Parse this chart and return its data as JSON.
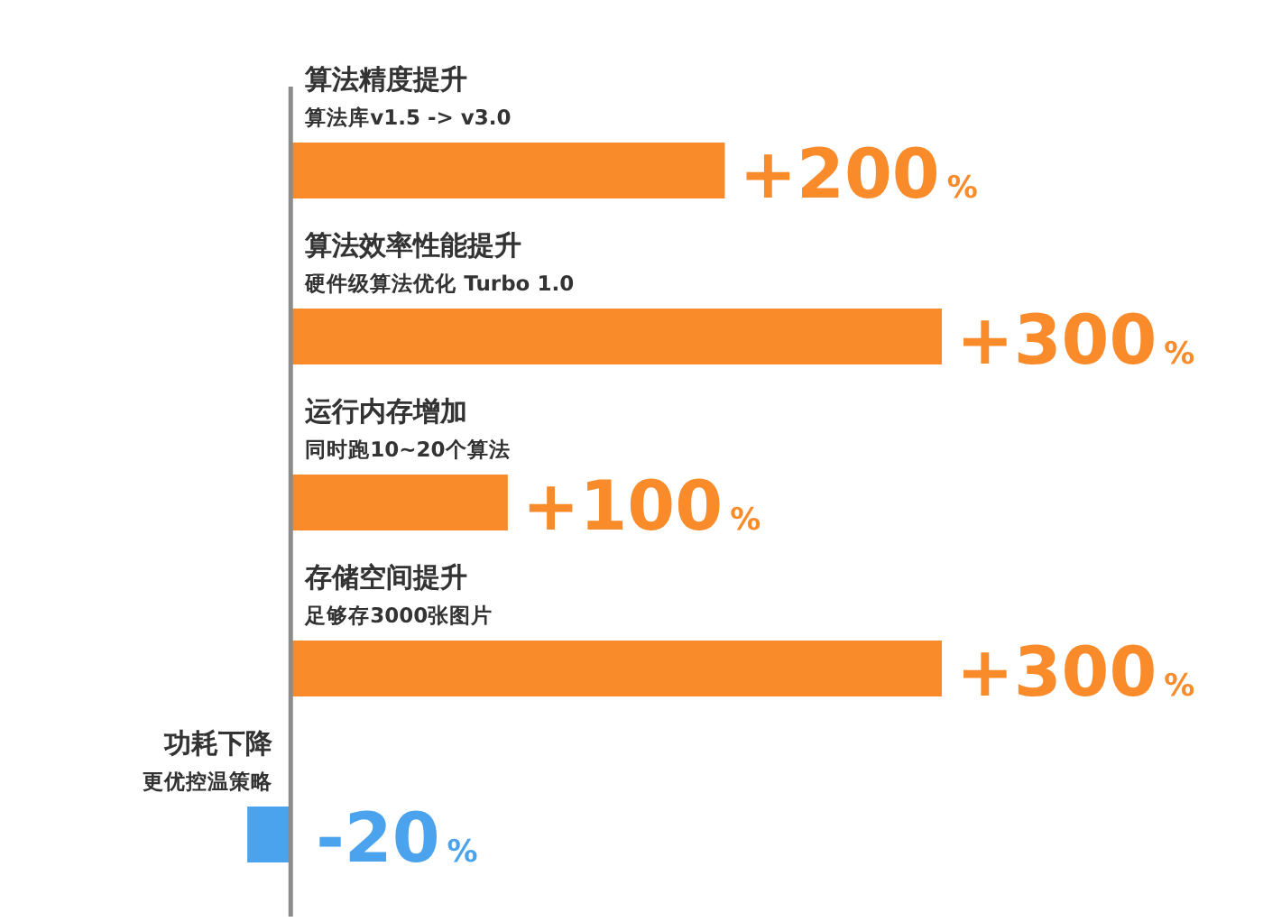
{
  "chart_data": {
    "type": "bar",
    "orientation": "horizontal",
    "categories": [
      "算法精度提升",
      "算法效率性能提升",
      "运行内存增加",
      "存储空间提升",
      "功耗下降"
    ],
    "values": [
      200,
      300,
      100,
      300,
      -20
    ],
    "colors": [
      "#f98b2b",
      "#f98b2b",
      "#f98b2b",
      "#f98b2b",
      "#4aa3ec"
    ],
    "value_labels": [
      "+200%",
      "+300%",
      "+100%",
      "+300%",
      "-20%"
    ],
    "annotations": [
      "算法库v1.5 -> v3.0",
      "硬件级算法优化 Turbo 1.0",
      "同时跑10~20个算法",
      "足够存3000张图片",
      "更优控温策略"
    ]
  }
}
